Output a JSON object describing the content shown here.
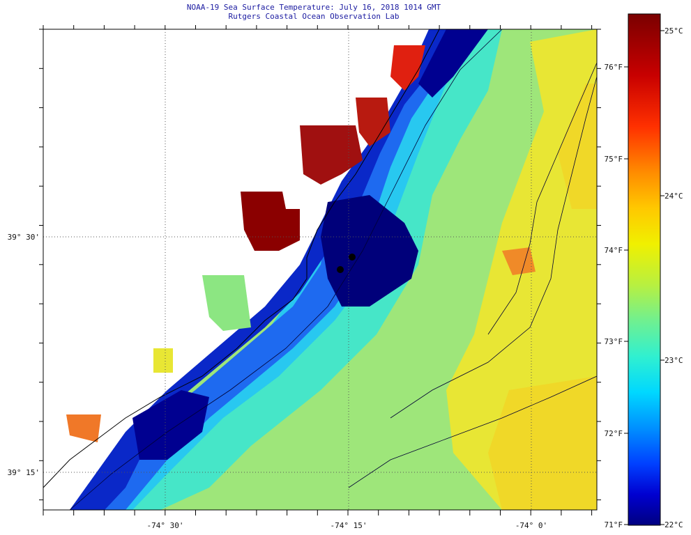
{
  "header": {
    "title": "NOAA-19 Sea Surface Temperature:  July 16, 2018 1014 GMT",
    "subtitle": "Rutgers Coastal Ocean Observation Lab"
  },
  "map": {
    "lat_labels": [
      "39° 30'",
      "39° 15'"
    ],
    "lon_labels": [
      "-74° 30'",
      "-74° 15'",
      "-74° 0'"
    ]
  },
  "colorbar": {
    "celsius_labels": [
      "25°C",
      "24°C",
      "23°C",
      "22°C"
    ],
    "fahrenheit_labels": [
      "76°F",
      "75°F",
      "74°F",
      "73°F",
      "72°F",
      "71°F"
    ],
    "colors": [
      "#7a0000",
      "#c80000",
      "#ff3000",
      "#ff8c00",
      "#ffc800",
      "#f0f000",
      "#b8f040",
      "#70f090",
      "#30f0d0",
      "#00d8ff",
      "#0090ff",
      "#0040ff",
      "#0000d0",
      "#000080"
    ]
  },
  "palette": {
    "dark_red": "#8b0000",
    "red": "#cc1a00",
    "orange": "#f07020",
    "yellow": "#f0dc28",
    "light_green": "#c8e650",
    "green": "#8ce682",
    "aqua": "#46e6c8",
    "cyan": "#28c8f0",
    "light_blue": "#1e82ff",
    "blue": "#0a32dc",
    "navy": "#000096",
    "deep_navy": "#00006e"
  }
}
